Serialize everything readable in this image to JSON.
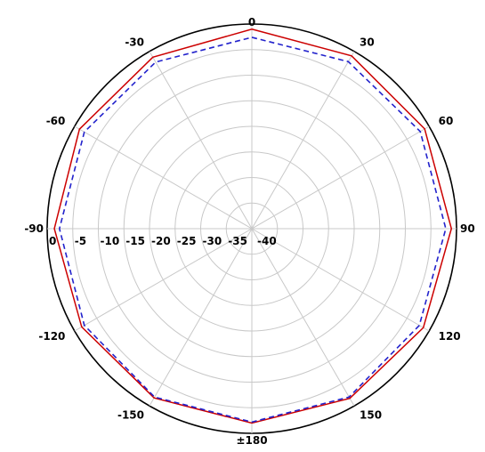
{
  "chart_data": {
    "type": "line",
    "projection": "polar",
    "grid": true,
    "angle_ticks": [
      {
        "angle": 0,
        "label": "0"
      },
      {
        "angle": 30,
        "label": "30"
      },
      {
        "angle": 60,
        "label": "60"
      },
      {
        "angle": 90,
        "label": "90"
      },
      {
        "angle": 120,
        "label": "120"
      },
      {
        "angle": 150,
        "label": "150"
      },
      {
        "angle": 180,
        "label": "±180"
      },
      {
        "angle": -150,
        "label": "-150"
      },
      {
        "angle": -120,
        "label": "-120"
      },
      {
        "angle": -90,
        "label": "-90"
      },
      {
        "angle": -60,
        "label": "-60"
      },
      {
        "angle": -30,
        "label": "-30"
      }
    ],
    "radial_range": [
      -40,
      0
    ],
    "radial_ticks": [
      {
        "value": 0,
        "label": "0"
      },
      {
        "value": -5,
        "label": "-5"
      },
      {
        "value": -10,
        "label": "-10"
      },
      {
        "value": -15,
        "label": "-15"
      },
      {
        "value": -20,
        "label": "-20"
      },
      {
        "value": -25,
        "label": "-25"
      },
      {
        "value": -30,
        "label": "-30"
      },
      {
        "value": -35,
        "label": "-35"
      },
      {
        "value": -40,
        "label": "-40"
      }
    ],
    "series": [
      {
        "color": "#cc0000",
        "dash": "solid",
        "points": [
          [
            0,
            -1.0
          ],
          [
            30,
            -1.0
          ],
          [
            60,
            -1.0
          ],
          [
            90,
            -1.0
          ],
          [
            120,
            -1.3
          ],
          [
            150,
            -1.7
          ],
          [
            180,
            -2.0
          ],
          [
            -150,
            -1.8
          ],
          [
            -120,
            -1.6
          ],
          [
            -90,
            -1.4
          ],
          [
            -60,
            -1.1
          ],
          [
            -30,
            -1.3
          ],
          [
            0,
            -1.0
          ]
        ]
      },
      {
        "color": "#2222cc",
        "dash": "dashed",
        "points": [
          [
            0,
            -2.6
          ],
          [
            30,
            -2.3
          ],
          [
            60,
            -2.0
          ],
          [
            90,
            -2.1
          ],
          [
            120,
            -2.2
          ],
          [
            150,
            -2.0
          ],
          [
            180,
            -2.2
          ],
          [
            -150,
            -2.0
          ],
          [
            -120,
            -2.2
          ],
          [
            -90,
            -2.4
          ],
          [
            -60,
            -2.2
          ],
          [
            -30,
            -2.4
          ],
          [
            0,
            -2.6
          ]
        ]
      }
    ]
  }
}
